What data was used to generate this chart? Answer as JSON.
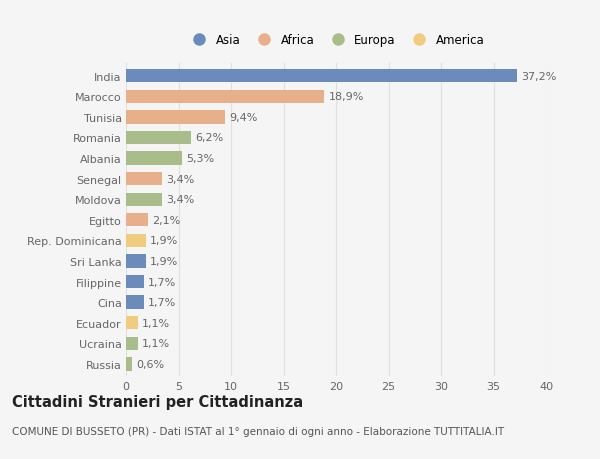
{
  "categories": [
    "India",
    "Marocco",
    "Tunisia",
    "Romania",
    "Albania",
    "Senegal",
    "Moldova",
    "Egitto",
    "Rep. Dominicana",
    "Sri Lanka",
    "Filippine",
    "Cina",
    "Ecuador",
    "Ucraina",
    "Russia"
  ],
  "values": [
    37.2,
    18.9,
    9.4,
    6.2,
    5.3,
    3.4,
    3.4,
    2.1,
    1.9,
    1.9,
    1.7,
    1.7,
    1.1,
    1.1,
    0.6
  ],
  "labels": [
    "37,2%",
    "18,9%",
    "9,4%",
    "6,2%",
    "5,3%",
    "3,4%",
    "3,4%",
    "2,1%",
    "1,9%",
    "1,9%",
    "1,7%",
    "1,7%",
    "1,1%",
    "1,1%",
    "0,6%"
  ],
  "colors": [
    "#6b8cba",
    "#e8b08a",
    "#e8b08a",
    "#a8bd8a",
    "#a8bd8a",
    "#e8b08a",
    "#a8bd8a",
    "#e8b08a",
    "#f0cc80",
    "#6b8cba",
    "#6b8cba",
    "#6b8cba",
    "#f0cc80",
    "#a8bd8a",
    "#a8bd8a"
  ],
  "legend_labels": [
    "Asia",
    "Africa",
    "Europa",
    "America"
  ],
  "legend_colors": [
    "#6b8cba",
    "#e8b08a",
    "#a8bd8a",
    "#f0cc80"
  ],
  "title": "Cittadini Stranieri per Cittadinanza",
  "subtitle": "COMUNE DI BUSSETO (PR) - Dati ISTAT al 1° gennaio di ogni anno - Elaborazione TUTTITALIA.IT",
  "xlim": [
    0,
    40
  ],
  "xticks": [
    0,
    5,
    10,
    15,
    20,
    25,
    30,
    35,
    40
  ],
  "background_color": "#f5f5f5",
  "grid_color": "#e0e0e0",
  "bar_height": 0.65,
  "label_fontsize": 8,
  "tick_fontsize": 8,
  "title_fontsize": 10.5,
  "subtitle_fontsize": 7.5
}
